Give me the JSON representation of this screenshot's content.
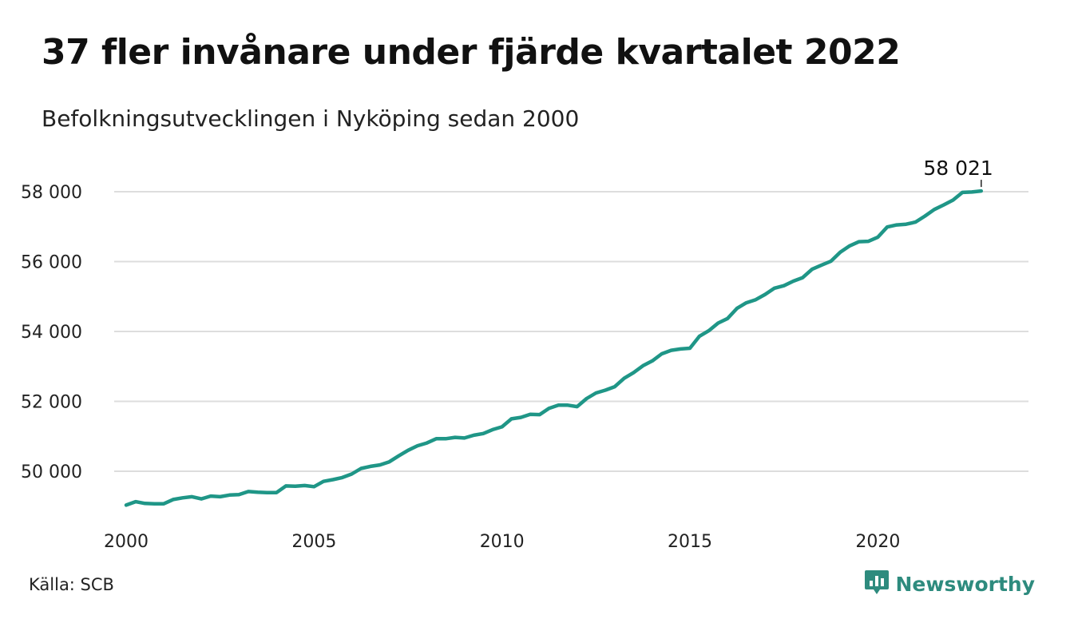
{
  "header": {
    "title": "37 fler invånare under fjärde kvartalet 2022",
    "subtitle": "Befolkningsutvecklingen i Nyköping sedan 2000"
  },
  "footer": {
    "source": "Källa: SCB",
    "brand": "Newsworthy",
    "brand_icon": "newsworthy-logo-icon"
  },
  "colors": {
    "line": "#1f9687",
    "grid": "#dddddd",
    "brand": "#2e8b7e"
  },
  "chart_data": {
    "type": "line",
    "x_tick_labels": [
      "2000",
      "2005",
      "2010",
      "2015",
      "2020"
    ],
    "x_ticks": [
      2000,
      2005,
      2010,
      2015,
      2020
    ],
    "y_tick_labels": [
      "50 000",
      "52 000",
      "54 000",
      "56 000",
      "58 000"
    ],
    "y_ticks": [
      50000,
      52000,
      54000,
      56000,
      58000
    ],
    "xlim": [
      2000,
      2023.2
    ],
    "ylim": [
      48700,
      58600
    ],
    "grid": true,
    "annotation": {
      "label": "58 021",
      "x": 2022.75,
      "y": 58021
    },
    "series": [
      {
        "x": [
          2000.0,
          2000.25,
          2000.5,
          2000.75,
          2001.0,
          2001.25,
          2001.5,
          2001.75,
          2002.0,
          2002.25,
          2002.5,
          2002.75,
          2003.0,
          2003.25,
          2003.5,
          2003.75,
          2004.0,
          2004.25,
          2004.5,
          2004.75,
          2005.0,
          2005.25,
          2005.5,
          2005.75,
          2006.0,
          2006.25,
          2006.5,
          2006.75,
          2007.0,
          2007.25,
          2007.5,
          2007.75,
          2008.0,
          2008.25,
          2008.5,
          2008.75,
          2009.0,
          2009.25,
          2009.5,
          2009.75,
          2010.0,
          2010.25,
          2010.5,
          2010.75,
          2011.0,
          2011.25,
          2011.5,
          2011.75,
          2012.0,
          2012.25,
          2012.5,
          2012.75,
          2013.0,
          2013.25,
          2013.5,
          2013.75,
          2014.0,
          2014.25,
          2014.5,
          2014.75,
          2015.0,
          2015.25,
          2015.5,
          2015.75,
          2016.0,
          2016.25,
          2016.5,
          2016.75,
          2017.0,
          2017.25,
          2017.5,
          2017.75,
          2018.0,
          2018.25,
          2018.5,
          2018.75,
          2019.0,
          2019.25,
          2019.5,
          2019.75,
          2020.0,
          2020.25,
          2020.5,
          2020.75,
          2021.0,
          2021.25,
          2021.5,
          2021.75,
          2022.0,
          2022.25,
          2022.5,
          2022.75
        ],
        "values": [
          49030,
          49130,
          49080,
          49070,
          49070,
          49190,
          49240,
          49270,
          49210,
          49290,
          49270,
          49320,
          49330,
          49420,
          49400,
          49390,
          49390,
          49580,
          49570,
          49590,
          49560,
          49710,
          49760,
          49820,
          49920,
          50080,
          50140,
          50180,
          50270,
          50440,
          50600,
          50730,
          50810,
          50930,
          50930,
          50970,
          50950,
          51030,
          51080,
          51190,
          51270,
          51500,
          51540,
          51630,
          51620,
          51800,
          51890,
          51890,
          51850,
          52080,
          52240,
          52320,
          52420,
          52660,
          52820,
          53020,
          53160,
          53360,
          53460,
          53500,
          53520,
          53860,
          54020,
          54240,
          54370,
          54660,
          54820,
          54910,
          55060,
          55240,
          55310,
          55440,
          55540,
          55780,
          55900,
          56010,
          56270,
          56450,
          56570,
          56580,
          56700,
          56990,
          57050,
          57070,
          57130,
          57300,
          57490,
          57620,
          57760,
          57980,
          57990,
          58021
        ]
      }
    ]
  }
}
